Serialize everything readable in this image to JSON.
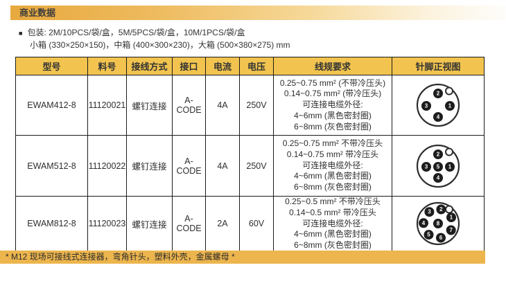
{
  "section_title": "商业数据",
  "packaging": {
    "bullet": "■",
    "line1": "包装: 2M/10PCS/袋/盒，5M/5PCS/袋/盒，10M/1PCS/袋/盒",
    "line2": "小箱 (330×250×150)，中箱 (400×300×230)，大箱 (500×380×275) mm"
  },
  "table": {
    "headers": [
      "型号",
      "料号",
      "接线方式",
      "接口",
      "电流",
      "电压",
      "线规要求",
      "针脚正视图"
    ],
    "rows": [
      {
        "model": "EWAM412-8",
        "part_no": "11120021",
        "connection": "螺钉连接",
        "interface": "A-CODE",
        "current": "4A",
        "voltage": "250V",
        "wire_spec": [
          "0.25~0.75 mm²  (不带冷压头)",
          "0.14~0.75 mm²  (带冷压头)",
          "可连接电缆外径:",
          "4~6mm (黑色密封圈)",
          "6~8mm (灰色密封圈)"
        ],
        "pin_diagram": {
          "type": "m12-4pin",
          "pins": [
            {
              "n": "2",
              "x": 0,
              "y": -17
            },
            {
              "n": "3",
              "x": -17,
              "y": 1
            },
            {
              "n": "1",
              "x": 17,
              "y": 1
            },
            {
              "n": "4",
              "x": 0,
              "y": 17
            }
          ]
        }
      },
      {
        "model": "EWAM512-8",
        "part_no": "11120022",
        "connection": "螺钉连接",
        "interface": "A-CODE",
        "current": "4A",
        "voltage": "250V",
        "wire_spec": [
          "0.25~0.75 mm² 不带冷压头",
          "0.14~0.75 mm² 带冷压头",
          "可连接电缆外径:",
          "4~6mm (黑色密封圈)",
          "6~8mm (灰色密封圈)"
        ],
        "pin_diagram": {
          "type": "m12-5pin",
          "pins": [
            {
              "n": "2",
              "x": 0,
              "y": -17
            },
            {
              "n": "3",
              "x": -17,
              "y": 1
            },
            {
              "n": "5",
              "x": 0,
              "y": 1
            },
            {
              "n": "1",
              "x": 17,
              "y": 1
            },
            {
              "n": "4",
              "x": 0,
              "y": 17
            }
          ]
        }
      },
      {
        "model": "EWAM812-8",
        "part_no": "11120023",
        "connection": "螺钉连接",
        "interface": "A-CODE",
        "current": "2A",
        "voltage": "60V",
        "wire_spec": [
          "0.25~0.5 mm² 不带冷压头",
          "0.14~0.5 mm² 带冷压头",
          "可连接电缆外径:",
          "4~6mm (黑色密封圈)",
          "6~8mm (灰色密封圈)"
        ],
        "pin_diagram": {
          "type": "m12-8pin",
          "pins": [
            {
              "n": "2",
              "x": 4.4,
              "y": -20.5
            },
            {
              "n": "1",
              "x": 19.0,
              "y": -8.9
            },
            {
              "n": "7",
              "x": 18.7,
              "y": 9.5
            },
            {
              "n": "6",
              "x": 4.0,
              "y": 20.6
            },
            {
              "n": "5",
              "x": -13.5,
              "y": 16.1
            },
            {
              "n": "4",
              "x": -21.0,
              "y": -0.7
            },
            {
              "n": "3",
              "x": -12.6,
              "y": -16.8
            },
            {
              "n": "8",
              "x": 0,
              "y": 0
            }
          ]
        }
      }
    ]
  },
  "footnote": "* M12 现场可接线式连接器，弯角针头，塑料外壳，金属螺母 *",
  "colors": {
    "title_gradient_start": "#E8A93E",
    "header_bg": "#F2C44F",
    "footnote_bg": "#ECB54D",
    "border": "#1a1a1a",
    "pin_fill": "#1d1d1d",
    "pin_number": "#ffffff"
  }
}
